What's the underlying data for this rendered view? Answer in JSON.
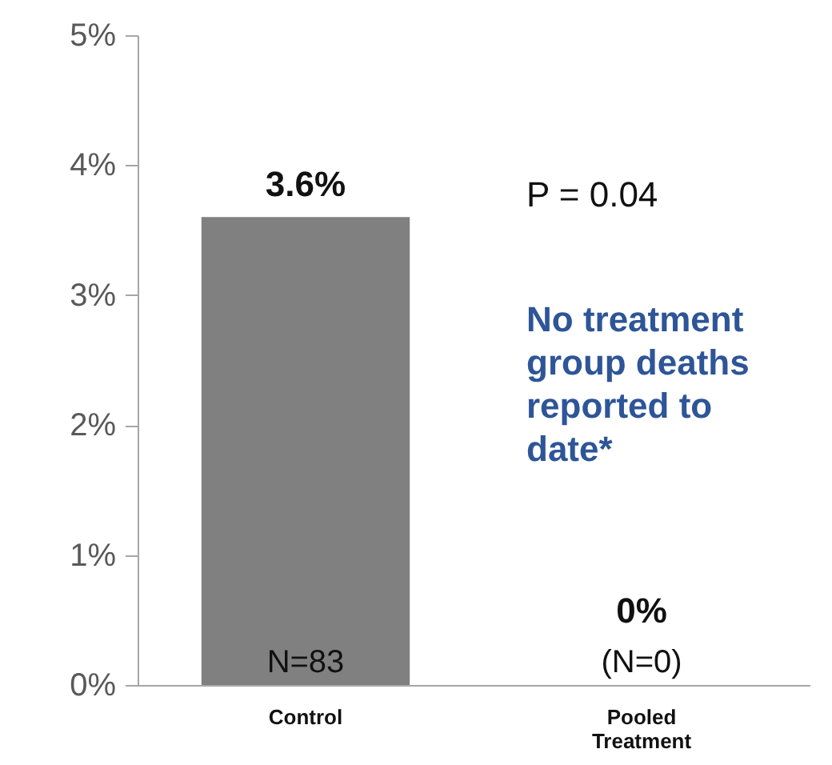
{
  "chart_data": {
    "type": "bar",
    "categories": [
      "Control",
      "Pooled Treatment"
    ],
    "values": [
      3.6,
      0
    ],
    "color": "#808080",
    "value_labels": [
      "3.6%",
      "0%"
    ],
    "ylim": [
      0,
      5
    ],
    "yticks": [
      {
        "value": 0,
        "label": "0%"
      },
      {
        "value": 1,
        "label": "1%"
      },
      {
        "value": 2,
        "label": "2%"
      },
      {
        "value": 3,
        "label": "3%"
      },
      {
        "value": 4,
        "label": "4%"
      },
      {
        "value": 5,
        "label": "5%"
      }
    ],
    "grid": false,
    "annotations": [
      {
        "text": "N=83",
        "x": "Control",
        "y": 0
      },
      {
        "text": "(N=0)",
        "x": "Pooled Treatment",
        "y": 0
      },
      "P = 0.04",
      "No treatment group deaths reported to date*"
    ]
  }
}
